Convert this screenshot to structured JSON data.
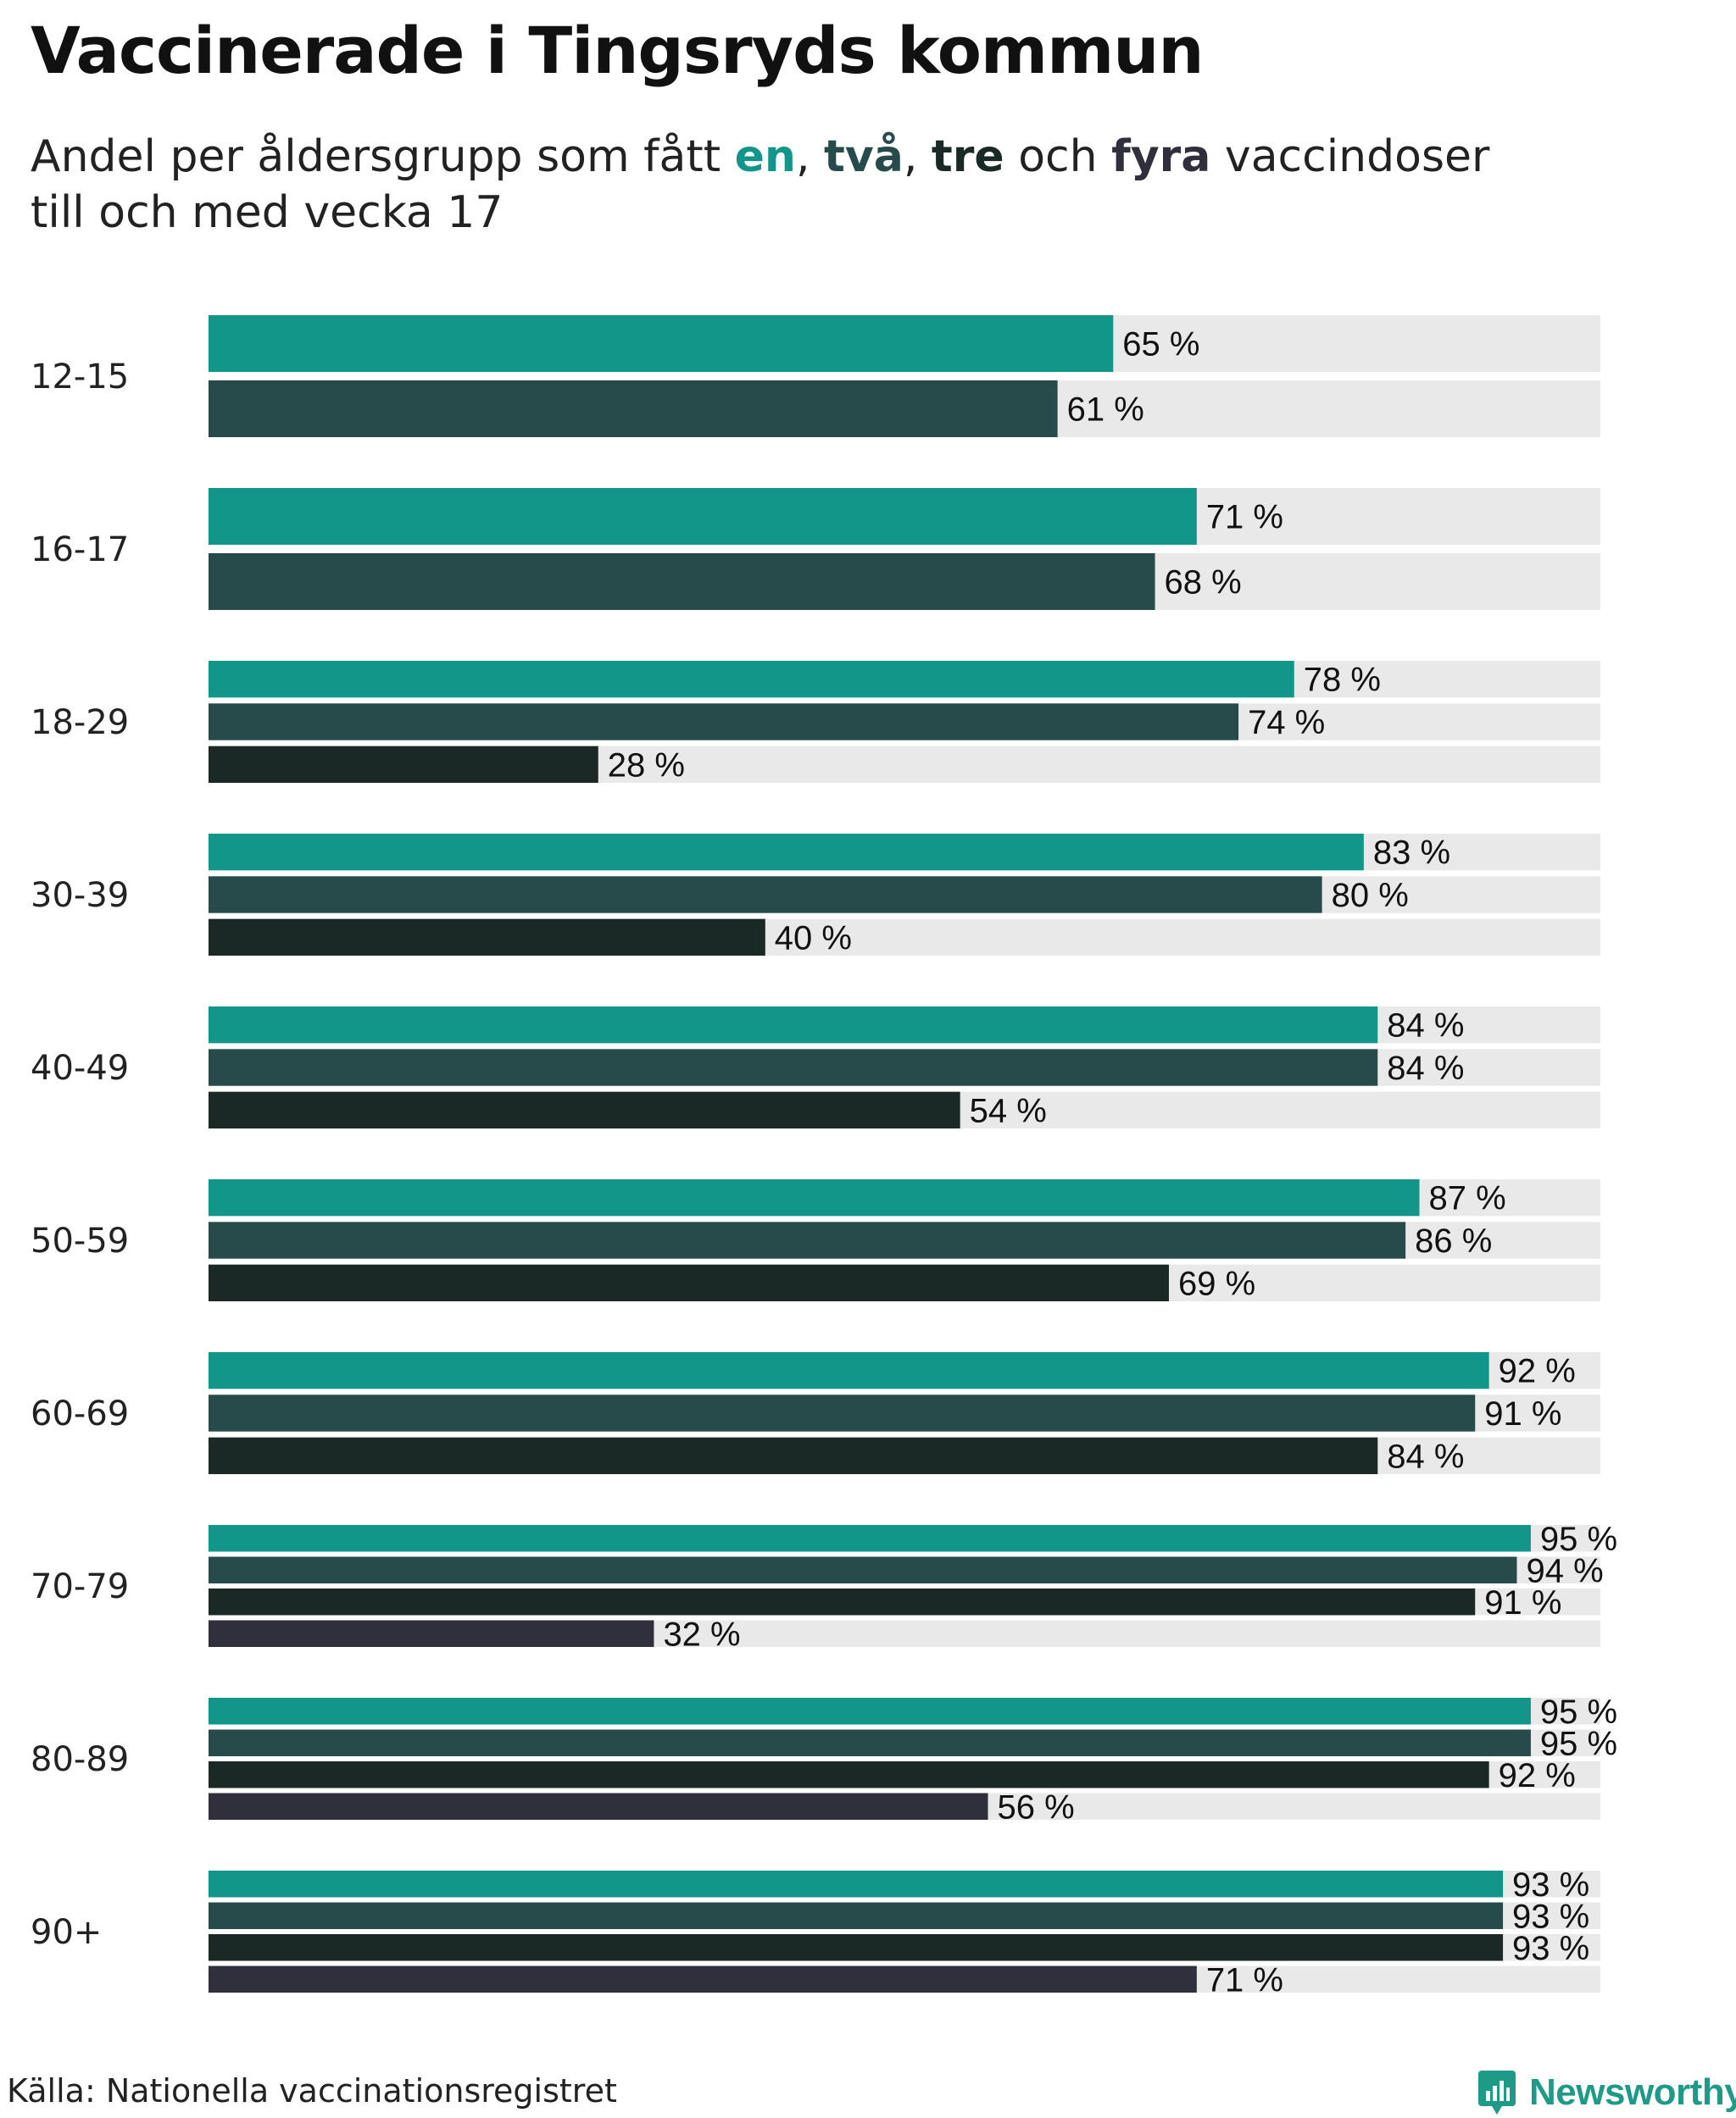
{
  "title": "Vaccinerade i Tingsryds kommun",
  "subtitle": {
    "before": "Andel per åldersgrupp som fått ",
    "dose1": "en",
    "sep1": ", ",
    "dose2": "två",
    "sep2": ", ",
    "dose3": "tre",
    "sep3": " och ",
    "dose4": "fyra",
    "after": " vaccindoser",
    "line2": "till och med vecka 17"
  },
  "source": "Källa: Nationella vaccinationsregistret",
  "logo": {
    "text": "Newsworthy",
    "icon": "newsworthy-bar-chart-icon"
  },
  "colors": {
    "dose1": "#12968a",
    "dose2": "#264b4a",
    "dose3": "#1a2826",
    "dose4": "#30303d",
    "track": "#e9e9e9",
    "brand": "#1f9a87"
  },
  "chart_data": {
    "type": "bar",
    "orientation": "horizontal",
    "unit": "%",
    "xlim": [
      0,
      100
    ],
    "grid": false,
    "categories": [
      "12-15",
      "16-17",
      "18-29",
      "30-39",
      "40-49",
      "50-59",
      "60-69",
      "70-79",
      "80-89",
      "90+"
    ],
    "series": [
      {
        "name": "en",
        "values": [
          65,
          71,
          78,
          83,
          84,
          87,
          92,
          95,
          95,
          93
        ]
      },
      {
        "name": "två",
        "values": [
          61,
          68,
          74,
          80,
          84,
          86,
          91,
          94,
          95,
          93
        ]
      },
      {
        "name": "tre",
        "values": [
          null,
          null,
          28,
          40,
          54,
          69,
          84,
          91,
          92,
          93
        ]
      },
      {
        "name": "fyra",
        "values": [
          null,
          null,
          null,
          null,
          null,
          null,
          null,
          32,
          56,
          71
        ]
      }
    ]
  }
}
